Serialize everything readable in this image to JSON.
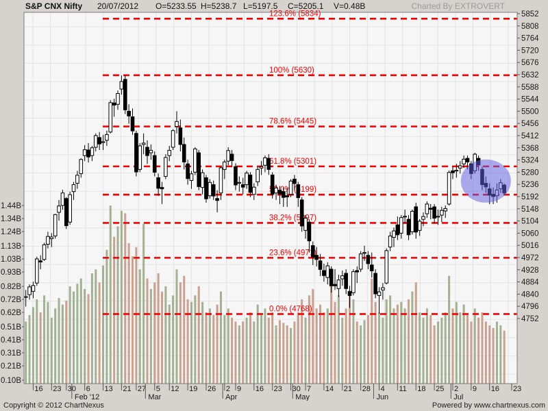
{
  "header": {
    "symbol": "S&P CNX Nifty",
    "date": "20/07/2012",
    "open": "O=5233.55",
    "high": "H=5238.7",
    "low": "L=5197.5",
    "close": "C=5205.1",
    "volume": "V=0.48B",
    "credit": "Charted By EXTROVERT"
  },
  "footer": {
    "copyright": "Copyright © 2012 ChartNexus",
    "powered": "Powered by www.chartnexus.com"
  },
  "colors": {
    "plot_bg": "#f6f6f6",
    "grid": "#e3e3e3",
    "border": "#7a7a7a",
    "fib": "#f40000",
    "candle": "#000000",
    "candle_up_fill": "#ffffff",
    "vol_up": "#a3b192",
    "vol_down": "#caa08f",
    "highlight": "#5f5fe0",
    "axis_text": "#1a1a1a",
    "tick": "#555555"
  },
  "chart_data": {
    "type": "candlestick+volume",
    "title": "S&P CNX Nifty",
    "legend_position": "none",
    "grid": true,
    "price_axis": {
      "side": "right",
      "ticks": [
        5852,
        5808,
        5764,
        5720,
        5676,
        5632,
        5588,
        5544,
        5500,
        5456,
        5412,
        5368,
        5324,
        5280,
        5236,
        5192,
        5148,
        5104,
        5060,
        5016,
        4972,
        4928,
        4884,
        4840,
        4796,
        4752
      ]
    },
    "volume_axis": {
      "side": "left",
      "ticks": [
        "1.44B",
        "1.34B",
        "1.24B",
        "1.13B",
        "1.03B",
        "0.93B",
        "0.82B",
        "0.72B",
        "0.62B",
        "0.51B",
        "0.41B",
        "0.31B",
        "0.21B",
        "0.10B"
      ]
    },
    "x_axis": {
      "slots": 134,
      "week_ticks": [
        {
          "label": "16",
          "i": 2
        },
        {
          "label": "23",
          "i": 7
        },
        {
          "label": "30",
          "i": 11
        },
        {
          "label": "6",
          "i": 16
        },
        {
          "label": "13",
          "i": 21
        },
        {
          "label": "21",
          "i": 26
        },
        {
          "label": "27",
          "i": 30
        },
        {
          "label": "5",
          "i": 35
        },
        {
          "label": "12",
          "i": 39
        },
        {
          "label": "19",
          "i": 44
        },
        {
          "label": "26",
          "i": 49
        },
        {
          "label": "2",
          "i": 54
        },
        {
          "label": "9",
          "i": 57
        },
        {
          "label": "16",
          "i": 62
        },
        {
          "label": "23",
          "i": 67
        },
        {
          "label": "30",
          "i": 72
        },
        {
          "label": "7",
          "i": 76
        },
        {
          "label": "14",
          "i": 81
        },
        {
          "label": "21",
          "i": 86
        },
        {
          "label": "28",
          "i": 91
        },
        {
          "label": "4",
          "i": 96
        },
        {
          "label": "11",
          "i": 101
        },
        {
          "label": "18",
          "i": 106
        },
        {
          "label": "25",
          "i": 111
        },
        {
          "label": "2",
          "i": 116
        },
        {
          "label": "9",
          "i": 121
        },
        {
          "label": "16",
          "i": 126
        },
        {
          "label": "23",
          "i": 132
        }
      ],
      "month_labels": [
        {
          "label": "Feb '12",
          "i": 13
        },
        {
          "label": "Mar",
          "i": 33
        },
        {
          "label": "Apr",
          "i": 54
        },
        {
          "label": "May",
          "i": 73
        },
        {
          "label": "Jun",
          "i": 95
        },
        {
          "label": "Jul",
          "i": 116
        }
      ]
    },
    "fib_levels": [
      {
        "label": "123.6%",
        "price": 5834
      },
      {
        "label": "100%",
        "price": 5630
      },
      {
        "label": "78.6%",
        "price": 5445
      },
      {
        "label": "61.8%",
        "price": 5301
      },
      {
        "label": "50.0%",
        "price": 5199
      },
      {
        "label": "38.2%",
        "price": 5097
      },
      {
        "label": "23.6%",
        "price": 4971
      },
      {
        "label": "0.0%",
        "price": 4768
      }
    ],
    "highlight": {
      "shape": "ellipse",
      "note": "blue highlight over mid-July consolidation candles",
      "center_index": 125,
      "center_price": 5248,
      "rx_days": 6.8,
      "ry_points": 78
    },
    "candles_format": [
      "date",
      "open",
      "high",
      "low",
      "close",
      "volume_B"
    ],
    "candles": [
      [
        "12/01",
        4830,
        4855,
        4795,
        4831,
        0.55
      ],
      [
        "13/01",
        4838,
        4875,
        4820,
        4866,
        0.6
      ],
      [
        "16/01",
        4850,
        4885,
        4825,
        4871,
        0.66
      ],
      [
        "17/01",
        4880,
        4975,
        4870,
        4967,
        0.72
      ],
      [
        "18/01",
        4960,
        4980,
        4930,
        4956,
        0.62
      ],
      [
        "19/01",
        4965,
        5025,
        4960,
        5018,
        0.75
      ],
      [
        "20/01",
        5020,
        5065,
        5005,
        5048,
        0.7
      ],
      [
        "23/01",
        5040,
        5060,
        5010,
        5046,
        0.58
      ],
      [
        "24/01",
        5050,
        5130,
        5040,
        5127,
        0.65
      ],
      [
        "25/01",
        5135,
        5180,
        5105,
        5158,
        0.73
      ],
      [
        "27/01",
        5160,
        5217,
        5145,
        5205,
        0.68
      ],
      [
        "30/01",
        5185,
        5190,
        5075,
        5087,
        0.71
      ],
      [
        "31/01",
        5100,
        5210,
        5090,
        5199,
        0.82
      ],
      [
        "01/02",
        5210,
        5245,
        5180,
        5235,
        0.78
      ],
      [
        "02/02",
        5240,
        5285,
        5220,
        5269,
        0.84
      ],
      [
        "03/02",
        5275,
        5330,
        5260,
        5326,
        0.88
      ],
      [
        "06/02",
        5340,
        5378,
        5320,
        5361,
        0.8
      ],
      [
        "07/02",
        5360,
        5385,
        5315,
        5335,
        0.76
      ],
      [
        "08/02",
        5340,
        5375,
        5320,
        5368,
        0.92
      ],
      [
        "09/02",
        5370,
        5420,
        5355,
        5412,
        0.95
      ],
      [
        "10/02",
        5405,
        5425,
        5360,
        5382,
        0.85
      ],
      [
        "13/02",
        5390,
        5415,
        5360,
        5390,
        0.98
      ],
      [
        "14/02",
        5395,
        5430,
        5375,
        5416,
        1.1
      ],
      [
        "15/02",
        5425,
        5540,
        5420,
        5531,
        1.44
      ],
      [
        "16/02",
        5530,
        5545,
        5480,
        5522,
        1.2
      ],
      [
        "17/02",
        5525,
        5575,
        5505,
        5564,
        1.28
      ],
      [
        "21/02",
        5580,
        5629,
        5560,
        5607,
        1.4
      ],
      [
        "22/02",
        5615,
        5630,
        5490,
        5505,
        1.38
      ],
      [
        "23/02",
        5500,
        5525,
        5455,
        5483,
        1.15
      ],
      [
        "24/02",
        5480,
        5510,
        5415,
        5429,
        1.05
      ],
      [
        "27/02",
        5420,
        5430,
        5265,
        5281,
        1.12
      ],
      [
        "28/02",
        5290,
        5385,
        5280,
        5375,
        0.95
      ],
      [
        "29/02",
        5380,
        5420,
        5345,
        5385,
        1.3
      ],
      [
        "01/03",
        5370,
        5395,
        5310,
        5340,
        0.88
      ],
      [
        "02/03",
        5350,
        5380,
        5325,
        5359,
        0.8
      ],
      [
        "05/03",
        5340,
        5355,
        5265,
        5280,
        0.85
      ],
      [
        "06/03",
        5260,
        5275,
        5195,
        5222,
        0.92
      ],
      [
        "07/03",
        5225,
        5245,
        5165,
        5220,
        0.78
      ],
      [
        "09/03",
        5265,
        5345,
        5255,
        5333,
        0.82
      ],
      [
        "12/03",
        5340,
        5375,
        5320,
        5359,
        0.68
      ],
      [
        "13/03",
        5370,
        5435,
        5360,
        5430,
        0.75
      ],
      [
        "14/03",
        5445,
        5500,
        5420,
        5463,
        0.95
      ],
      [
        "15/03",
        5440,
        5470,
        5355,
        5380,
        0.85
      ],
      [
        "16/03",
        5380,
        5405,
        5290,
        5317,
        0.9
      ],
      [
        "19/03",
        5310,
        5325,
        5235,
        5257,
        0.72
      ],
      [
        "20/03",
        5250,
        5285,
        5220,
        5274,
        0.7
      ],
      [
        "21/03",
        5280,
        5370,
        5270,
        5364,
        0.75
      ],
      [
        "22/03",
        5350,
        5360,
        5215,
        5228,
        0.82
      ],
      [
        "23/03",
        5225,
        5290,
        5200,
        5278,
        0.7
      ],
      [
        "26/03",
        5260,
        5270,
        5170,
        5184,
        0.62
      ],
      [
        "27/03",
        5195,
        5255,
        5185,
        5243,
        0.65
      ],
      [
        "28/03",
        5235,
        5250,
        5180,
        5194,
        0.6
      ],
      [
        "29/03",
        5185,
        5215,
        5135,
        5178,
        0.68
      ],
      [
        "30/03",
        5205,
        5300,
        5180,
        5296,
        0.78
      ],
      [
        "02/04",
        5290,
        5325,
        5255,
        5317,
        0.6
      ],
      [
        "03/04",
        5320,
        5370,
        5305,
        5358,
        0.65
      ],
      [
        "04/04",
        5345,
        5360,
        5300,
        5322,
        0.58
      ],
      [
        "09/04",
        5300,
        5312,
        5215,
        5234,
        0.55
      ],
      [
        "10/04",
        5240,
        5265,
        5210,
        5243,
        0.52
      ],
      [
        "11/04",
        5235,
        5260,
        5200,
        5226,
        0.55
      ],
      [
        "12/04",
        5235,
        5285,
        5220,
        5277,
        0.58
      ],
      [
        "13/04",
        5270,
        5280,
        5190,
        5207,
        0.62
      ],
      [
        "16/04",
        5200,
        5240,
        5180,
        5226,
        0.55
      ],
      [
        "17/04",
        5245,
        5300,
        5230,
        5290,
        0.68
      ],
      [
        "18/04",
        5295,
        5320,
        5270,
        5300,
        0.6
      ],
      [
        "19/04",
        5305,
        5340,
        5280,
        5332,
        0.65
      ],
      [
        "20/04",
        5330,
        5345,
        5270,
        5290,
        0.58
      ],
      [
        "23/04",
        5270,
        5280,
        5185,
        5200,
        0.62
      ],
      [
        "24/04",
        5205,
        5235,
        5180,
        5223,
        0.52
      ],
      [
        "25/04",
        5215,
        5230,
        5165,
        5202,
        0.56
      ],
      [
        "26/04",
        5210,
        5225,
        5155,
        5189,
        0.54
      ],
      [
        "27/04",
        5195,
        5225,
        5155,
        5191,
        0.52
      ],
      [
        "30/04",
        5200,
        5255,
        5190,
        5248,
        0.5
      ],
      [
        "02/05",
        5255,
        5270,
        5215,
        5239,
        0.55
      ],
      [
        "03/05",
        5235,
        5245,
        5155,
        5188,
        0.62
      ],
      [
        "04/05",
        5180,
        5190,
        5065,
        5086,
        0.72
      ],
      [
        "07/05",
        5070,
        5125,
        5040,
        5114,
        0.58
      ],
      [
        "08/05",
        5100,
        5110,
        4990,
        5032,
        0.75
      ],
      [
        "09/05",
        5015,
        5030,
        4945,
        4974,
        0.8
      ],
      [
        "10/05",
        4980,
        5010,
        4940,
        4965,
        0.65
      ],
      [
        "11/05",
        4960,
        4985,
        4905,
        4929,
        0.68
      ],
      [
        "14/05",
        4925,
        4950,
        4885,
        4907,
        0.62
      ],
      [
        "15/05",
        4900,
        4955,
        4875,
        4942,
        0.65
      ],
      [
        "16/05",
        4930,
        4940,
        4845,
        4870,
        0.85
      ],
      [
        "17/05",
        4875,
        4930,
        4855,
        4870,
        0.7
      ],
      [
        "18/05",
        4860,
        4910,
        4830,
        4891,
        0.75
      ],
      [
        "21/05",
        4895,
        4925,
        4870,
        4906,
        0.58
      ],
      [
        "22/05",
        4915,
        4930,
        4840,
        4860,
        0.65
      ],
      [
        "23/05",
        4850,
        4870,
        4790,
        4835,
        0.78
      ],
      [
        "24/05",
        4845,
        4930,
        4835,
        4921,
        0.72
      ],
      [
        "25/05",
        4925,
        4940,
        4880,
        4920,
        0.55
      ],
      [
        "28/05",
        4930,
        4995,
        4920,
        4985,
        0.52
      ],
      [
        "29/05",
        4990,
        5015,
        4960,
        4990,
        0.56
      ],
      [
        "30/05",
        4980,
        4995,
        4930,
        4950,
        0.6
      ],
      [
        "31/05",
        4945,
        4990,
        4900,
        4924,
        0.88
      ],
      [
        "01/06",
        4915,
        4930,
        4825,
        4841,
        0.7
      ],
      [
        "04/06",
        4835,
        4865,
        4770,
        4848,
        0.62
      ],
      [
        "05/06",
        4855,
        4880,
        4820,
        4863,
        0.58
      ],
      [
        "06/06",
        4880,
        5005,
        4875,
        4997,
        0.72
      ],
      [
        "07/06",
        5010,
        5065,
        4995,
        5050,
        0.75
      ],
      [
        "08/06",
        5045,
        5080,
        5010,
        5068,
        0.65
      ],
      [
        "11/06",
        5090,
        5120,
        5035,
        5054,
        0.68
      ],
      [
        "12/06",
        5060,
        5125,
        5040,
        5116,
        0.7
      ],
      [
        "13/06",
        5120,
        5145,
        5095,
        5121,
        0.65
      ],
      [
        "14/06",
        5110,
        5125,
        5035,
        5054,
        0.72
      ],
      [
        "15/06",
        5065,
        5145,
        5055,
        5139,
        0.78
      ],
      [
        "18/06",
        5155,
        5170,
        5040,
        5064,
        0.85
      ],
      [
        "19/06",
        5070,
        5110,
        5050,
        5103,
        0.62
      ],
      [
        "20/06",
        5110,
        5135,
        5085,
        5120,
        0.58
      ],
      [
        "21/06",
        5130,
        5175,
        5115,
        5165,
        0.65
      ],
      [
        "22/06",
        5150,
        5165,
        5110,
        5146,
        0.6
      ],
      [
        "25/06",
        5155,
        5165,
        5095,
        5114,
        0.52
      ],
      [
        "26/06",
        5120,
        5145,
        5090,
        5121,
        0.55
      ],
      [
        "27/06",
        5125,
        5155,
        5100,
        5142,
        0.58
      ],
      [
        "28/06",
        5140,
        5160,
        5115,
        5149,
        0.62
      ],
      [
        "29/06",
        5165,
        5286,
        5160,
        5279,
        0.9
      ],
      [
        "02/07",
        5285,
        5300,
        5255,
        5278,
        0.65
      ],
      [
        "03/07",
        5285,
        5310,
        5260,
        5287,
        0.7
      ],
      [
        "04/07",
        5295,
        5320,
        5275,
        5303,
        0.62
      ],
      [
        "05/07",
        5310,
        5340,
        5295,
        5327,
        0.68
      ],
      [
        "06/07",
        5330,
        5340,
        5290,
        5317,
        0.6
      ],
      [
        "09/07",
        5310,
        5320,
        5255,
        5275,
        0.55
      ],
      [
        "10/07",
        5285,
        5350,
        5275,
        5345,
        0.65
      ],
      [
        "11/07",
        5330,
        5340,
        5285,
        5306,
        0.58
      ],
      [
        "12/07",
        5290,
        5300,
        5215,
        5235,
        0.62
      ],
      [
        "13/07",
        5240,
        5265,
        5205,
        5227,
        0.55
      ],
      [
        "16/07",
        5220,
        5240,
        5165,
        5197,
        0.52
      ],
      [
        "17/07",
        5200,
        5225,
        5165,
        5192,
        0.5
      ],
      [
        "18/07",
        5195,
        5240,
        5170,
        5216,
        0.55
      ],
      [
        "19/07",
        5220,
        5255,
        5205,
        5242,
        0.52
      ],
      [
        "20/07",
        5233.55,
        5238.7,
        5197.5,
        5205.1,
        0.48
      ]
    ]
  }
}
